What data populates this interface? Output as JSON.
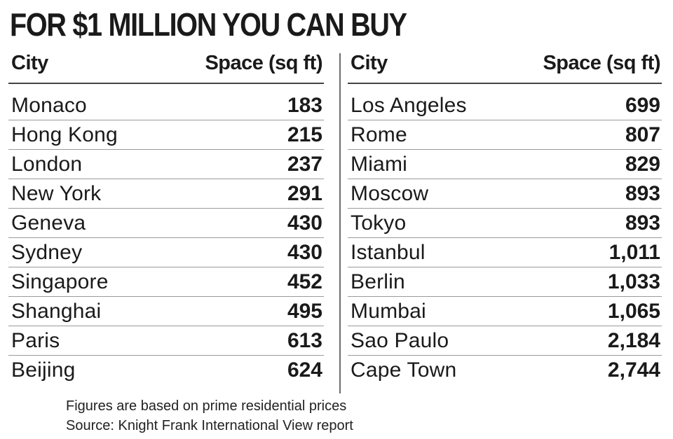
{
  "chart_data": {
    "type": "table",
    "title": "FOR $1 MILLION YOU CAN BUY",
    "columns": [
      "City",
      "Space (sq ft)"
    ],
    "left": {
      "header": {
        "city": "City",
        "space": "Space (sq ft)"
      },
      "rows": [
        {
          "city": "Monaco",
          "space": "183"
        },
        {
          "city": "Hong Kong",
          "space": "215"
        },
        {
          "city": "London",
          "space": "237"
        },
        {
          "city": "New York",
          "space": "291"
        },
        {
          "city": "Geneva",
          "space": "430"
        },
        {
          "city": "Sydney",
          "space": "430"
        },
        {
          "city": "Singapore",
          "space": "452"
        },
        {
          "city": "Shanghai",
          "space": "495"
        },
        {
          "city": "Paris",
          "space": "613"
        },
        {
          "city": "Beijing",
          "space": "624"
        }
      ]
    },
    "right": {
      "header": {
        "city": "City",
        "space": "Space (sq ft)"
      },
      "rows": [
        {
          "city": "Los Angeles",
          "space": "699"
        },
        {
          "city": "Rome",
          "space": "807"
        },
        {
          "city": "Miami",
          "space": "829"
        },
        {
          "city": "Moscow",
          "space": "893"
        },
        {
          "city": "Tokyo",
          "space": "893"
        },
        {
          "city": "Istanbul",
          "space": "1,011"
        },
        {
          "city": "Berlin",
          "space": "1,033"
        },
        {
          "city": "Mumbai",
          "space": "1,065"
        },
        {
          "city": "Sao Paulo",
          "space": "2,184"
        },
        {
          "city": "Cape Town",
          "space": "2,744"
        }
      ]
    },
    "notes": [
      "Figures are based on prime residential prices",
      "Source: Knight Frank International View report"
    ]
  }
}
